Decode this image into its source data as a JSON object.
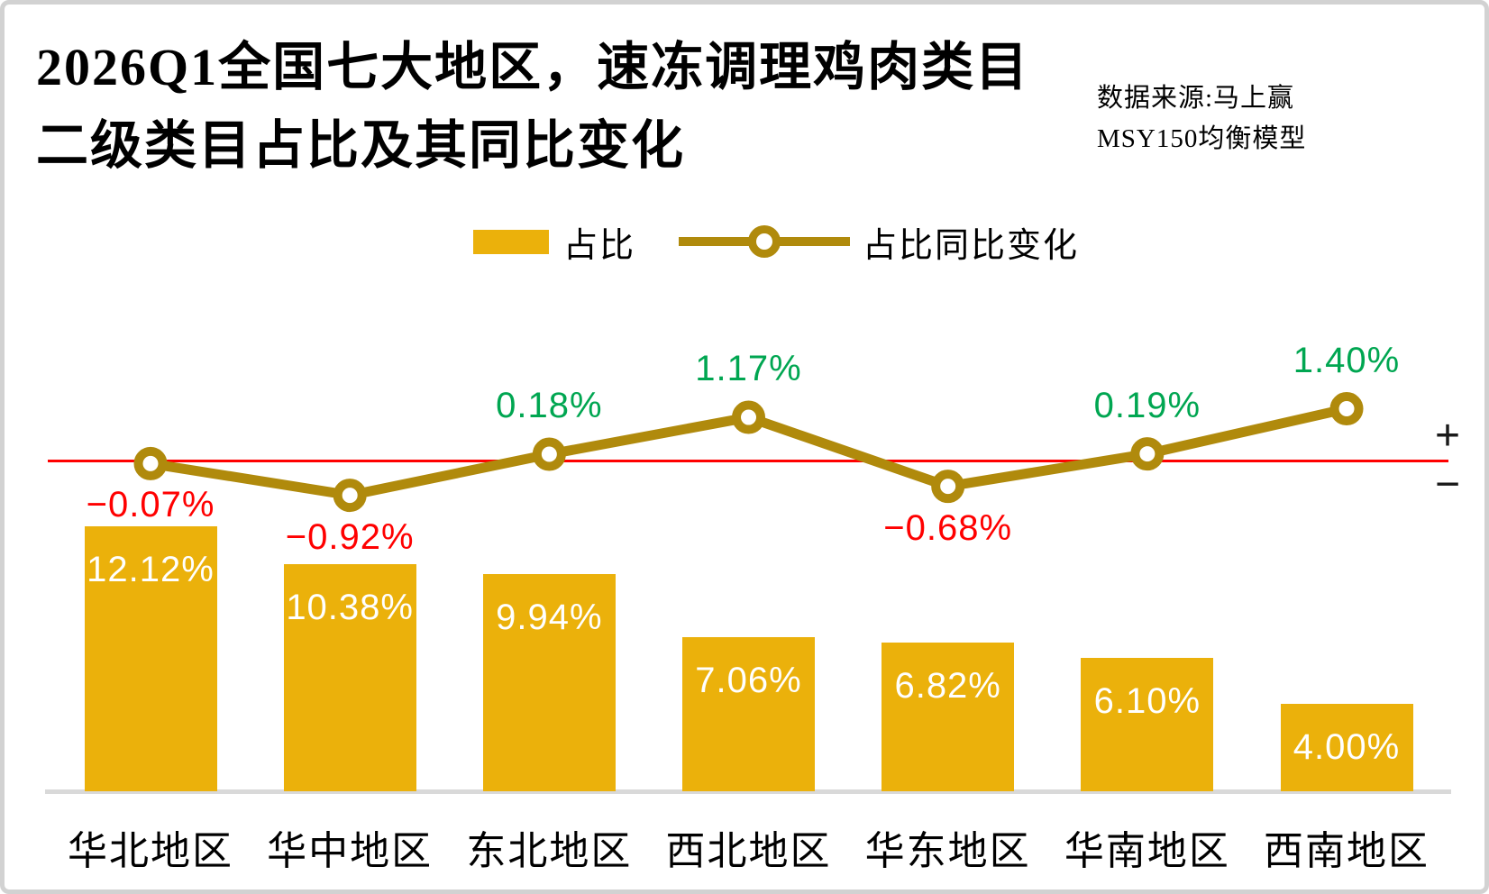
{
  "title": {
    "line1": "2026Q1全国七大地区，速冻调理鸡肉类目",
    "line2": "二级类目占比及其同比变化"
  },
  "source": {
    "line1": "数据来源:马上赢",
    "line2": "MSY150均衡模型"
  },
  "chart_data": {
    "type": "combo-bar-line",
    "categories": [
      "华北地区",
      "华中地区",
      "东北地区",
      "西北地区",
      "华东地区",
      "华南地区",
      "西南地区"
    ],
    "series": [
      {
        "name": "占比",
        "type": "bar",
        "unit": "%",
        "values": [
          12.12,
          10.38,
          9.94,
          7.06,
          6.82,
          6.1,
          4.0
        ],
        "labels": [
          "12.12%",
          "10.38%",
          "9.94%",
          "7.06%",
          "6.82%",
          "6.10%",
          "4.00%"
        ],
        "color": "#EBB10B",
        "label_color": "#FFFFFF"
      },
      {
        "name": "占比同比变化",
        "type": "line",
        "unit": "%",
        "values": [
          -0.07,
          -0.92,
          0.18,
          1.17,
          -0.68,
          0.19,
          1.4
        ],
        "labels": [
          "−0.07%",
          "−0.92%",
          "0.18%",
          "1.17%",
          "−0.68%",
          "0.19%",
          "1.40%"
        ],
        "color": "#B08A0C",
        "marker": "hollow-circle",
        "positive_label_color": "#00A651",
        "negative_label_color": "#FF0000"
      }
    ],
    "baseline": {
      "value": 0,
      "color": "#FF0000",
      "plus_label": "+",
      "minus_label": "−"
    },
    "bar_axis_range": [
      0,
      12.5
    ],
    "line_axis_range": [
      -1.5,
      1.5
    ],
    "legend_position": "top-center",
    "grid": false
  }
}
